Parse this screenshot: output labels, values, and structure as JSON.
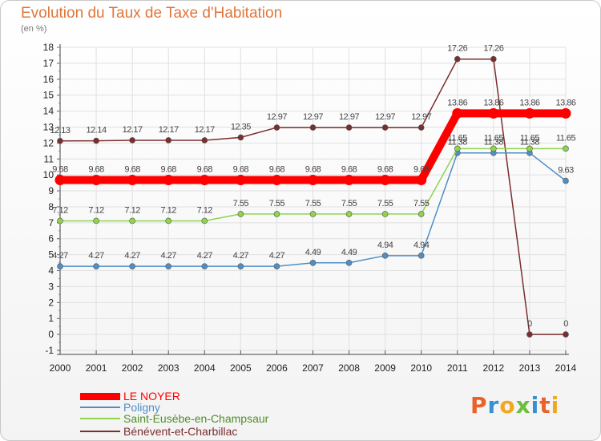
{
  "title": "Evolution du Taux de Taxe d'Habitation",
  "subtitle": "(en %)",
  "chart_data": {
    "type": "line",
    "x": [
      "2000",
      "2001",
      "2002",
      "2003",
      "2004",
      "2005",
      "2006",
      "2007",
      "2008",
      "2009",
      "2010",
      "2011",
      "2012",
      "2013",
      "2014"
    ],
    "ylim": [
      -1,
      18
    ],
    "yticks": [
      -1,
      0,
      1,
      2,
      3,
      4,
      5,
      6,
      7,
      8,
      9,
      10,
      11,
      12,
      13,
      14,
      15,
      16,
      17,
      18
    ],
    "grid": true,
    "legend_position": "bottom-left",
    "series": [
      {
        "name": "LE NOYER",
        "color": "#ff0000",
        "values": [
          9.68,
          9.68,
          9.68,
          9.68,
          9.68,
          9.68,
          9.68,
          9.68,
          9.68,
          9.68,
          9.68,
          13.86,
          13.86,
          13.86,
          13.86
        ],
        "labels": [
          "9.68",
          "9.68",
          "9.68",
          "9.68",
          "9.68",
          "9.68",
          "9.68",
          "9.68",
          "9.68",
          "9.68",
          "9.68",
          "13.86",
          "13.86",
          "13.86",
          "13.86"
        ]
      },
      {
        "name": "Poligny",
        "color": "#4f8fc6",
        "values": [
          4.27,
          4.27,
          4.27,
          4.27,
          4.27,
          4.27,
          4.27,
          4.49,
          4.49,
          4.94,
          4.94,
          11.38,
          11.38,
          11.38,
          9.63
        ],
        "labels": [
          "4.27",
          "4.27",
          "4.27",
          "4.27",
          "4.27",
          "4.27",
          "4.27",
          "4.49",
          "4.49",
          "4.94",
          "4.94",
          "11.38",
          "11.38",
          "11.38",
          "9.63"
        ]
      },
      {
        "name": "Saint-Eusèbe-en-Champsaur",
        "color": "#8fd44c",
        "values": [
          7.12,
          7.12,
          7.12,
          7.12,
          7.12,
          7.55,
          7.55,
          7.55,
          7.55,
          7.55,
          7.55,
          11.65,
          11.65,
          11.65,
          11.65
        ],
        "labels": [
          "7.12",
          "7.12",
          "7.12",
          "7.12",
          "7.12",
          "7.55",
          "7.55",
          "7.55",
          "7.55",
          "7.55",
          "7.55",
          "11.65",
          "11.65",
          "11.65",
          "11.65"
        ]
      },
      {
        "name": "Bénévent-et-Charbillac",
        "color": "#7a2e2e",
        "values": [
          12.13,
          12.14,
          12.17,
          12.17,
          12.17,
          12.35,
          12.97,
          12.97,
          12.97,
          12.97,
          12.97,
          17.26,
          17.26,
          0,
          0
        ],
        "labels": [
          "12.13",
          "12.14",
          "12.17",
          "12.17",
          "12.17",
          "12.35",
          "12.97",
          "12.97",
          "12.97",
          "12.97",
          "12.97",
          "17.26",
          "17.26",
          "0",
          "0"
        ]
      }
    ]
  },
  "logo": {
    "text": "Proxiti",
    "letters": [
      "P",
      "r",
      "o",
      "x",
      "i",
      "t",
      "i"
    ],
    "colors": [
      "#e8622a",
      "#3a8fd0",
      "#f2a81d",
      "#6cbf3a",
      "#3a8fd0",
      "#e8622a",
      "#f2a81d"
    ]
  }
}
